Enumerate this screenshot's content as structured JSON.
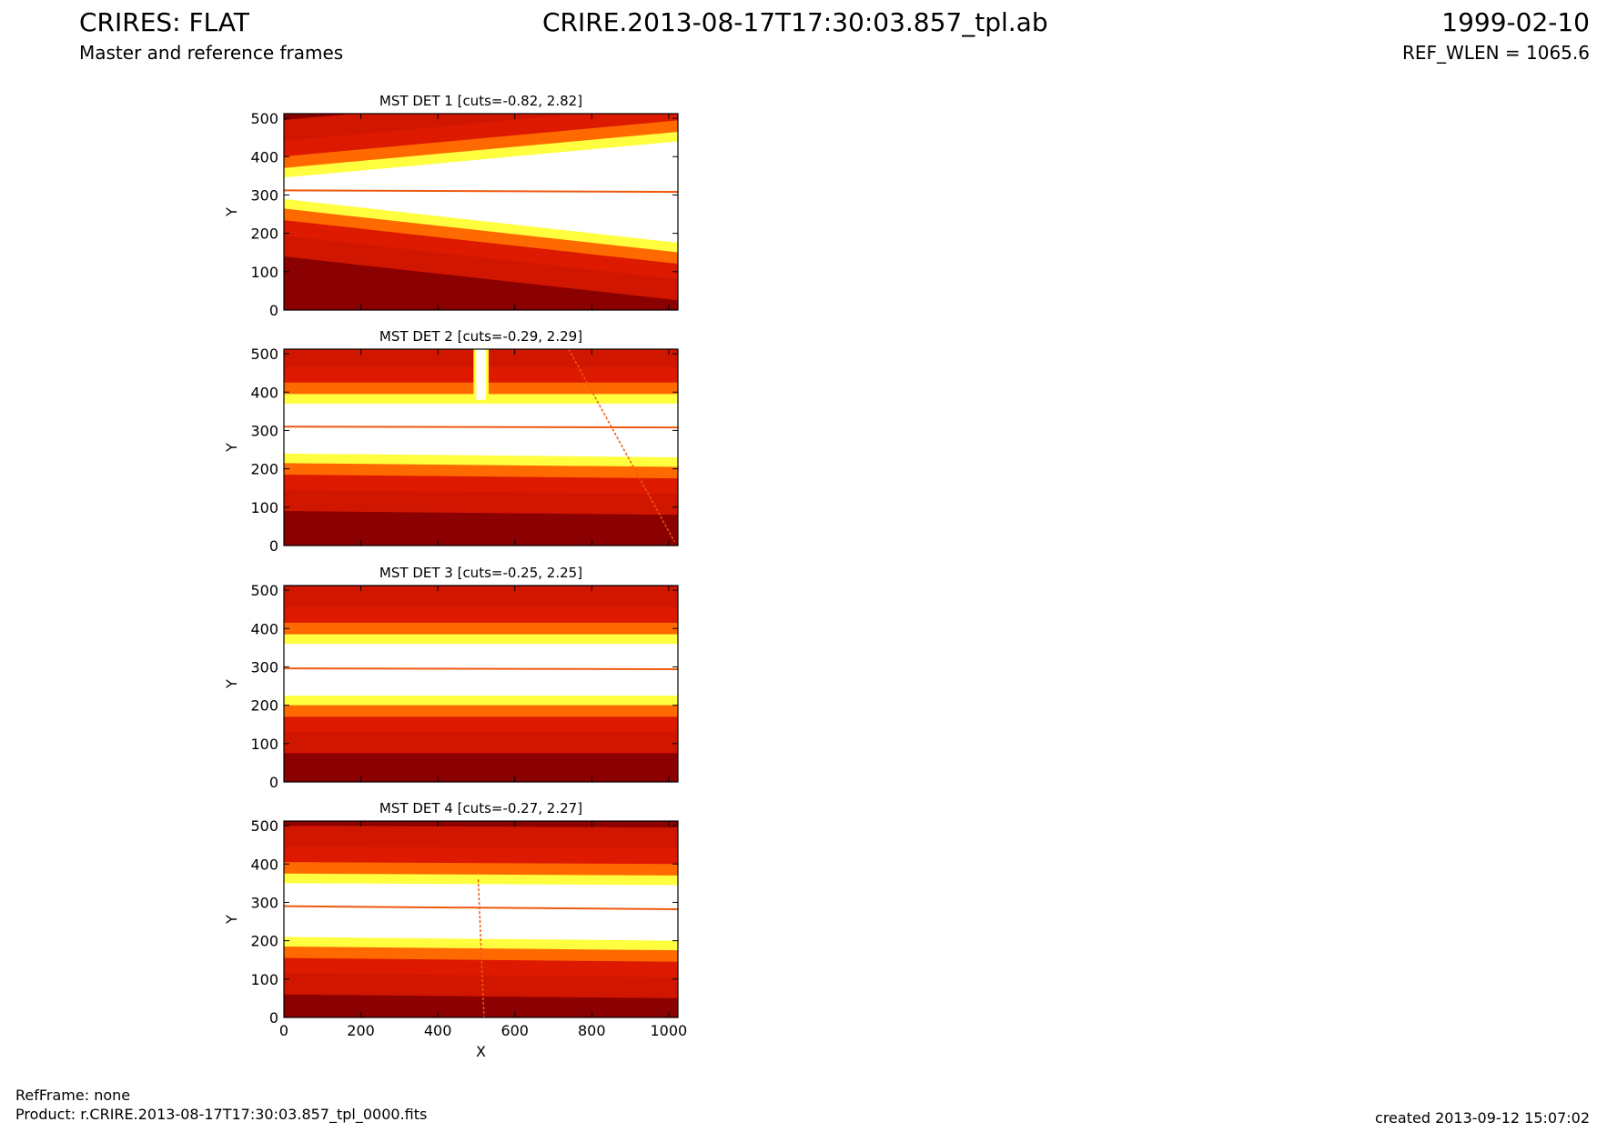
{
  "header": {
    "title_left": "CRIRES: FLAT",
    "subtitle_left": "Master and reference frames",
    "title_center": "CRIRE.2013-08-17T17:30:03.857_tpl.ab",
    "title_right": "1999-02-10",
    "subtitle_right": "REF_WLEN = 1065.6"
  },
  "footer": {
    "ref_frame": "RefFrame: none",
    "product": "Product: r.CRIRE.2013-08-17T17:30:03.857_tpl_0000.fits",
    "created": "created 2013-09-12 15:07:02"
  },
  "colors": {
    "dark": "#8b0000",
    "red": "#dd1a00",
    "orange": "#ff6a00",
    "yellow": "#ffff40",
    "white": "#ffffff",
    "line": "#ee5a10"
  },
  "chart_data": [
    {
      "type": "heatmap",
      "title": "MST DET 1 [cuts=-0.82, 2.82]",
      "ylabel": "Y",
      "xlabel": "",
      "xlim": [
        0,
        1024
      ],
      "ylim": [
        0,
        512
      ],
      "xticks": [
        0,
        200,
        400,
        600,
        800,
        1000
      ],
      "yticks": [
        0,
        100,
        200,
        300,
        400,
        500
      ],
      "show_xticklabels": false,
      "colormap": "hot",
      "illuminated_band": {
        "x": [
          0,
          1024
        ],
        "lower": [
          290,
          175
        ],
        "upper": [
          345,
          440
        ]
      },
      "features": [
        {
          "kind": "horizontal_line",
          "y": [
            312,
            308
          ]
        }
      ]
    },
    {
      "type": "heatmap",
      "title": "MST DET 2 [cuts=-0.29, 2.29]",
      "ylabel": "Y",
      "xlabel": "",
      "xlim": [
        0,
        1024
      ],
      "ylim": [
        0,
        512
      ],
      "xticks": [
        0,
        200,
        400,
        600,
        800,
        1000
      ],
      "yticks": [
        0,
        100,
        200,
        300,
        400,
        500
      ],
      "show_xticklabels": false,
      "colormap": "hot",
      "illuminated_band": {
        "x": [
          0,
          1024
        ],
        "lower": [
          240,
          230
        ],
        "upper": [
          370,
          370
        ]
      },
      "features": [
        {
          "kind": "horizontal_line",
          "y": [
            310,
            308
          ]
        },
        {
          "kind": "vertical_bright_strip",
          "x": [
            500,
            525
          ],
          "y": [
            380,
            512
          ]
        },
        {
          "kind": "diagonal_line",
          "from": [
            740,
            512
          ],
          "to": [
            1015,
            10
          ]
        }
      ]
    },
    {
      "type": "heatmap",
      "title": "MST DET 3 [cuts=-0.25, 2.25]",
      "ylabel": "Y",
      "xlabel": "",
      "xlim": [
        0,
        1024
      ],
      "ylim": [
        0,
        512
      ],
      "xticks": [
        0,
        200,
        400,
        600,
        800,
        1000
      ],
      "yticks": [
        0,
        100,
        200,
        300,
        400,
        500
      ],
      "show_xticklabels": false,
      "colormap": "hot",
      "illuminated_band": {
        "x": [
          0,
          1024
        ],
        "lower": [
          225,
          225
        ],
        "upper": [
          360,
          360
        ]
      },
      "features": [
        {
          "kind": "horizontal_line",
          "y": [
            296,
            294
          ]
        }
      ]
    },
    {
      "type": "heatmap",
      "title": "MST DET 4 [cuts=-0.27, 2.27]",
      "ylabel": "Y",
      "xlabel": "X",
      "xlim": [
        0,
        1024
      ],
      "ylim": [
        0,
        512
      ],
      "xticks": [
        0,
        200,
        400,
        600,
        800,
        1000
      ],
      "yticks": [
        0,
        100,
        200,
        300,
        400,
        500
      ],
      "show_xticklabels": true,
      "colormap": "hot",
      "illuminated_band": {
        "x": [
          0,
          1024
        ],
        "lower": [
          210,
          200
        ],
        "upper": [
          350,
          345
        ]
      },
      "features": [
        {
          "kind": "horizontal_line",
          "y": [
            290,
            282
          ]
        },
        {
          "kind": "diagonal_line",
          "from": [
            505,
            360
          ],
          "to": [
            520,
            0
          ]
        }
      ]
    }
  ]
}
